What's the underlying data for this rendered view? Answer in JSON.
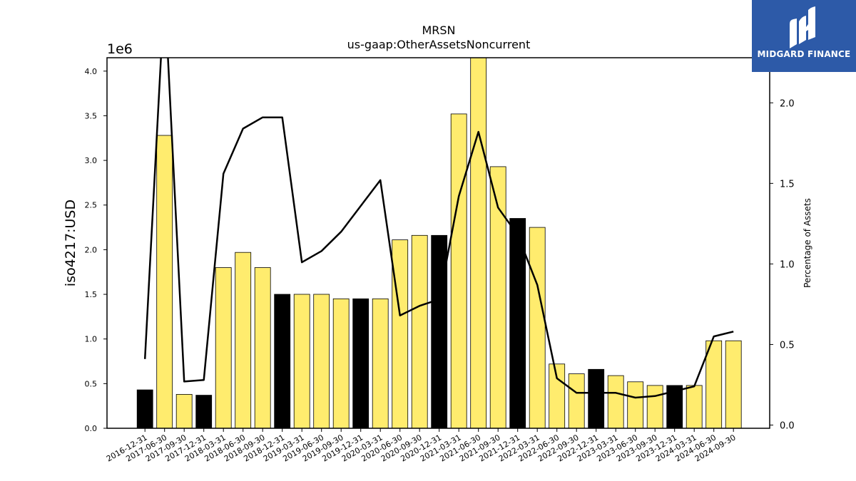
{
  "chart_data": {
    "type": "bar",
    "title": "MRSN",
    "subtitle": "us-gaap:OtherAssetsNoncurrent",
    "ylabel": "iso4217:USD",
    "y_offset_label": "1e6",
    "y2label": "Percentage of Assets",
    "ylim": [
      0,
      4150000
    ],
    "y2lim": [
      -0.02,
      2.28
    ],
    "yticks": [
      "0.0",
      "0.5",
      "1.0",
      "1.5",
      "2.0",
      "2.5",
      "3.0",
      "3.5",
      "4.0"
    ],
    "y2ticks": [
      "0.0",
      "0.5",
      "1.0",
      "1.5",
      "2.0"
    ],
    "categories": [
      "2016-12-31",
      "2017-06-30",
      "2017-09-30",
      "2017-12-31",
      "2018-03-31",
      "2018-06-30",
      "2018-09-30",
      "2018-12-31",
      "2019-03-31",
      "2019-06-30",
      "2019-09-30",
      "2019-12-31",
      "2020-03-31",
      "2020-06-30",
      "2020-09-30",
      "2020-12-31",
      "2021-03-31",
      "2021-06-30",
      "2021-09-30",
      "2021-12-31",
      "2022-03-31",
      "2022-06-30",
      "2022-09-30",
      "2022-12-31",
      "2023-03-31",
      "2023-06-30",
      "2023-09-30",
      "2023-12-31",
      "2024-03-31",
      "2024-06-30",
      "2024-09-30"
    ],
    "series": [
      {
        "type": "bar",
        "values": [
          430000,
          3280000,
          380000,
          370000,
          1800000,
          1970000,
          1800000,
          1500000,
          1500000,
          1500000,
          1450000,
          1450000,
          1450000,
          2110000,
          2160000,
          2160000,
          3520000,
          4200000,
          2930000,
          2350000,
          2250000,
          720000,
          610000,
          660000,
          590000,
          520000,
          480000,
          480000,
          480000,
          980000,
          980000
        ],
        "highlight": [
          true,
          false,
          false,
          true,
          false,
          false,
          false,
          true,
          false,
          false,
          false,
          true,
          false,
          false,
          false,
          true,
          false,
          false,
          false,
          true,
          false,
          false,
          false,
          true,
          false,
          false,
          false,
          true,
          false,
          false,
          false
        ]
      },
      {
        "type": "line",
        "axis": "right",
        "values": [
          0.41,
          2.7,
          0.27,
          0.28,
          1.56,
          1.84,
          1.91,
          1.91,
          1.01,
          1.08,
          1.2,
          1.36,
          1.52,
          0.68,
          0.74,
          0.78,
          1.42,
          1.82,
          1.35,
          1.18,
          0.87,
          0.29,
          0.2,
          0.2,
          0.2,
          0.17,
          0.18,
          0.21,
          0.24,
          0.55,
          0.58
        ]
      }
    ],
    "colors": {
      "bar": "#ffec6e",
      "bar_highlight": "#000000",
      "line": "#000000"
    }
  },
  "logo": {
    "text": "MIDGARD FINANCE",
    "bg": "#2d5aa8"
  }
}
